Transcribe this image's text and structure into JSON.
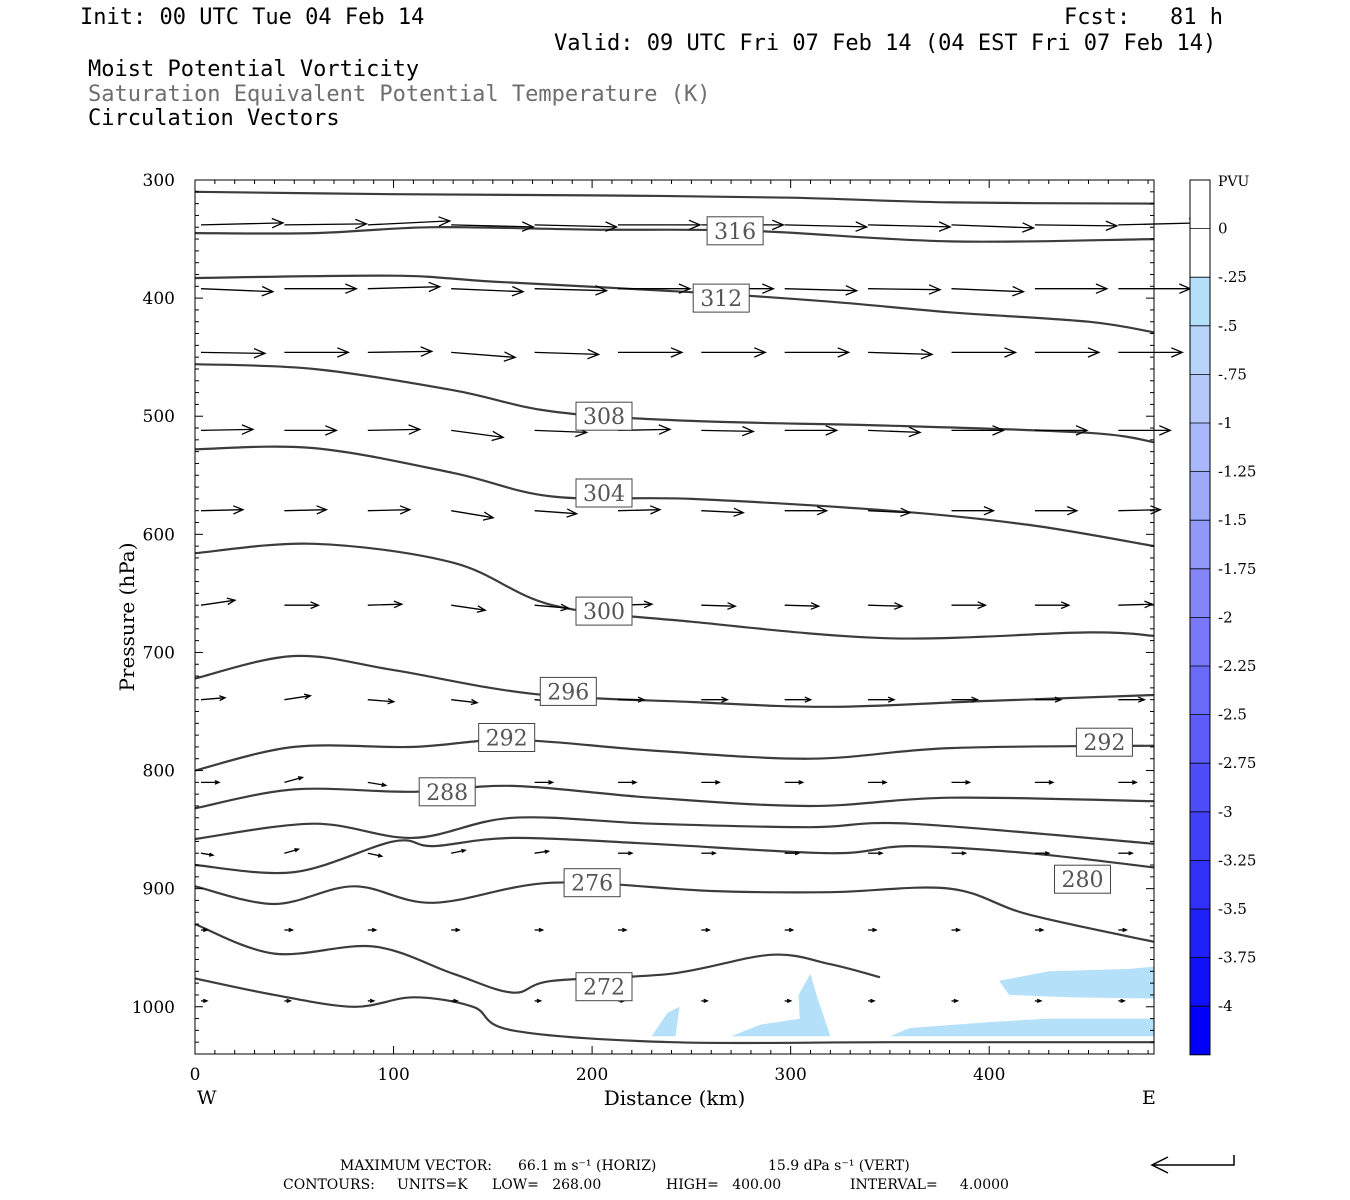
{
  "header": {
    "init": "Init: 00 UTC Tue 04 Feb 14",
    "fcst": "Fcst:   81 h",
    "valid": "Valid: 09 UTC Fri 07 Feb 14 (04 EST Fri 07 Feb 14)",
    "field1": "Moist Potential Vorticity",
    "field2": "Saturation Equivalent Potential Temperature (K)",
    "field3": "Circulation Vectors"
  },
  "footer": {
    "max_vector_label": "MAXIMUM VECTOR:",
    "max_horiz": "66.1 m s⁻¹ (HORIZ)",
    "max_vert": "15.9 dPa s⁻¹ (VERT)",
    "contours_label": "CONTOURS:",
    "units": "UNITS=K",
    "low": "LOW=   268.00",
    "high": "HIGH=   400.00",
    "interval": "INTERVAL=     4.0000"
  },
  "colors": {
    "contour": "#3c3c3c",
    "pv_fill": "#b4e0fa",
    "frame": "#000000"
  },
  "chart_data": {
    "type": "contour",
    "xlabel": "Distance (km)",
    "ylabel": "Pressure (hPa)",
    "x_ticks": [
      0,
      100,
      200,
      300,
      400
    ],
    "y_ticks": [
      300,
      400,
      500,
      600,
      700,
      800,
      900,
      1000
    ],
    "xlim": [
      0,
      483
    ],
    "ylim": [
      1040,
      300
    ],
    "x_side_labels": {
      "left": "W",
      "right": "E"
    },
    "contour_labels": [
      {
        "text": "316",
        "x": 272,
        "p": 343
      },
      {
        "text": "312",
        "x": 265,
        "p": 400
      },
      {
        "text": "308",
        "x": 206,
        "p": 500
      },
      {
        "text": "304",
        "x": 206,
        "p": 565
      },
      {
        "text": "300",
        "x": 206,
        "p": 665
      },
      {
        "text": "296",
        "x": 188,
        "p": 733
      },
      {
        "text": "292",
        "x": 157,
        "p": 772
      },
      {
        "text": "292",
        "x": 458,
        "p": 776
      },
      {
        "text": "288",
        "x": 127,
        "p": 818
      },
      {
        "text": "276",
        "x": 200,
        "p": 895
      },
      {
        "text": "280",
        "x": 447,
        "p": 892
      },
      {
        "text": "272",
        "x": 206,
        "p": 983
      }
    ],
    "isentropes": [
      [
        [
          0,
          310
        ],
        [
          100,
          312
        ],
        [
          200,
          313
        ],
        [
          300,
          315
        ],
        [
          380,
          319
        ],
        [
          483,
          320
        ]
      ],
      [
        [
          0,
          345
        ],
        [
          60,
          345
        ],
        [
          120,
          340
        ],
        [
          200,
          342
        ],
        [
          280,
          343
        ],
        [
          380,
          352
        ],
        [
          483,
          350
        ]
      ],
      [
        [
          0,
          383
        ],
        [
          100,
          381
        ],
        [
          150,
          386
        ],
        [
          250,
          395
        ],
        [
          320,
          403
        ],
        [
          380,
          412
        ],
        [
          450,
          420
        ],
        [
          483,
          429
        ]
      ],
      [
        [
          0,
          456
        ],
        [
          60,
          460
        ],
        [
          130,
          478
        ],
        [
          180,
          496
        ],
        [
          250,
          504
        ],
        [
          350,
          508
        ],
        [
          450,
          514
        ],
        [
          483,
          522
        ]
      ],
      [
        [
          0,
          528
        ],
        [
          60,
          527
        ],
        [
          130,
          548
        ],
        [
          180,
          568
        ],
        [
          250,
          570
        ],
        [
          350,
          580
        ],
        [
          420,
          592
        ],
        [
          483,
          610
        ]
      ],
      [
        [
          0,
          616
        ],
        [
          60,
          608
        ],
        [
          130,
          624
        ],
        [
          180,
          660
        ],
        [
          250,
          674
        ],
        [
          350,
          688
        ],
        [
          450,
          683
        ],
        [
          483,
          686
        ]
      ],
      [
        [
          0,
          722
        ],
        [
          50,
          703
        ],
        [
          100,
          715
        ],
        [
          170,
          735
        ],
        [
          250,
          742
        ],
        [
          320,
          746
        ],
        [
          400,
          741
        ],
        [
          483,
          736
        ]
      ],
      [
        [
          0,
          800
        ],
        [
          50,
          780
        ],
        [
          110,
          780
        ],
        [
          160,
          774
        ],
        [
          230,
          783
        ],
        [
          310,
          790
        ],
        [
          380,
          781
        ],
        [
          483,
          779
        ]
      ],
      [
        [
          0,
          832
        ],
        [
          50,
          816
        ],
        [
          110,
          818
        ],
        [
          160,
          813
        ],
        [
          230,
          823
        ],
        [
          310,
          830
        ],
        [
          380,
          823
        ],
        [
          483,
          826
        ]
      ],
      [
        [
          0,
          858
        ],
        [
          60,
          845
        ],
        [
          110,
          857
        ],
        [
          160,
          840
        ],
        [
          230,
          845
        ],
        [
          310,
          848
        ],
        [
          360,
          845
        ],
        [
          483,
          862
        ]
      ],
      [
        [
          0,
          880
        ],
        [
          50,
          886
        ],
        [
          100,
          860
        ],
        [
          120,
          864
        ],
        [
          160,
          857
        ],
        [
          230,
          862
        ],
        [
          320,
          870
        ],
        [
          360,
          864
        ],
        [
          420,
          870
        ],
        [
          483,
          882
        ]
      ],
      [
        [
          0,
          898
        ],
        [
          40,
          913
        ],
        [
          80,
          898
        ],
        [
          120,
          912
        ],
        [
          180,
          895
        ],
        [
          260,
          902
        ],
        [
          320,
          903
        ],
        [
          380,
          900
        ],
        [
          420,
          922
        ],
        [
          483,
          945
        ]
      ],
      [
        [
          0,
          930
        ],
        [
          40,
          955
        ],
        [
          90,
          949
        ],
        [
          130,
          972
        ],
        [
          160,
          988
        ],
        [
          180,
          978
        ],
        [
          240,
          972
        ],
        [
          290,
          956
        ],
        [
          320,
          964
        ],
        [
          345,
          975
        ]
      ],
      [
        [
          0,
          976
        ],
        [
          40,
          990
        ],
        [
          80,
          1000
        ],
        [
          110,
          992
        ],
        [
          140,
          1000
        ],
        [
          160,
          1020
        ],
        [
          240,
          1030
        ],
        [
          350,
          1030
        ],
        [
          483,
          1030
        ]
      ]
    ],
    "pv_regions": [
      {
        "level": -0.25,
        "points": [
          [
            230,
            1025
          ],
          [
            238,
            1005
          ],
          [
            244,
            1000
          ],
          [
            242,
            1025
          ]
        ]
      },
      {
        "level": -0.25,
        "points": [
          [
            305,
            1025
          ],
          [
            304,
            990
          ],
          [
            310,
            972
          ],
          [
            313,
            990
          ],
          [
            320,
            1025
          ]
        ]
      },
      {
        "level": -0.25,
        "points": [
          [
            270,
            1025
          ],
          [
            285,
            1015
          ],
          [
            305,
            1010
          ],
          [
            305,
            1025
          ]
        ]
      },
      {
        "level": -0.25,
        "points": [
          [
            350,
            1025
          ],
          [
            360,
            1018
          ],
          [
            400,
            1013
          ],
          [
            430,
            1010
          ],
          [
            483,
            1010
          ],
          [
            483,
            1025
          ]
        ]
      },
      {
        "level": -0.25,
        "points": [
          [
            405,
            978
          ],
          [
            430,
            970
          ],
          [
            470,
            968
          ],
          [
            483,
            966
          ],
          [
            483,
            993
          ],
          [
            440,
            992
          ],
          [
            410,
            990
          ]
        ]
      }
    ],
    "pv_colorbar": {
      "label": "PVU",
      "levels": [
        "0",
        "-.25",
        "-.5",
        "-.75",
        "-1",
        "-1.25",
        "-1.5",
        "-1.75",
        "-2",
        "-2.25",
        "-2.5",
        "-2.75",
        "-3",
        "-3.25",
        "-3.5",
        "-3.75",
        "-4"
      ],
      "colors": [
        "#ffffff",
        "#ffffff",
        "#b4e0fa",
        "#b8d4fa",
        "#b4c8fa",
        "#a8b8fa",
        "#9caaf8",
        "#9098f8",
        "#8486f8",
        "#7878f8",
        "#6a6af8",
        "#5c5cf8",
        "#4e4ef8",
        "#4040f8",
        "#3030f8",
        "#2020f8",
        "#1010f8",
        "#0000f8"
      ]
    },
    "vector_rows": [
      {
        "p": 338,
        "u": [
          82,
          82,
          82,
          82,
          82,
          82,
          82,
          82,
          82,
          82,
          82,
          82
        ],
        "w": [
          -2,
          -1,
          -4,
          2,
          2,
          0,
          0,
          2,
          2,
          3,
          1,
          -2
        ]
      },
      {
        "p": 392,
        "u": [
          72,
          72,
          72,
          72,
          72,
          72,
          72,
          72,
          72,
          72,
          72,
          72
        ],
        "w": [
          3,
          0,
          -2,
          3,
          2,
          0,
          0,
          2,
          1,
          3,
          0,
          0
        ]
      },
      {
        "p": 446,
        "u": [
          64,
          64,
          64,
          64,
          64,
          64,
          64,
          64,
          64,
          64,
          64,
          64
        ],
        "w": [
          1,
          0,
          -1,
          5,
          2,
          0,
          0,
          0,
          2,
          0,
          0,
          0
        ]
      },
      {
        "p": 512,
        "u": [
          52,
          52,
          52,
          52,
          52,
          52,
          52,
          52,
          52,
          52,
          52,
          52
        ],
        "w": [
          -1,
          0,
          -1,
          7,
          2,
          -1,
          1,
          0,
          2,
          0,
          0,
          0
        ]
      },
      {
        "p": 580,
        "u": [
          42,
          42,
          42,
          42,
          42,
          42,
          42,
          42,
          42,
          42,
          42,
          42
        ],
        "w": [
          -1,
          -1,
          -1,
          7,
          3,
          -1,
          2,
          0,
          2,
          0,
          0,
          -1
        ]
      },
      {
        "p": 660,
        "u": [
          34,
          34,
          34,
          34,
          34,
          34,
          34,
          34,
          34,
          34,
          34,
          34
        ],
        "w": [
          -5,
          0,
          -1,
          5,
          3,
          -1,
          1,
          1,
          1,
          0,
          0,
          -1
        ]
      },
      {
        "p": 740,
        "u": [
          24,
          26,
          26,
          26,
          26,
          26,
          26,
          26,
          26,
          26,
          26,
          26
        ],
        "w": [
          -2,
          -4,
          2,
          3,
          2,
          0,
          0,
          0,
          0,
          0,
          0,
          0
        ]
      },
      {
        "p": 810,
        "u": [
          18,
          18,
          18,
          18,
          18,
          18,
          18,
          18,
          18,
          18,
          18,
          18
        ],
        "w": [
          0,
          -5,
          3,
          -3,
          0,
          0,
          0,
          0,
          0,
          0,
          0,
          0
        ]
      },
      {
        "p": 870,
        "u": [
          12,
          14,
          14,
          14,
          14,
          14,
          14,
          14,
          14,
          14,
          14,
          14
        ],
        "w": [
          2,
          -4,
          3,
          -3,
          -2,
          0,
          0,
          0,
          0,
          0,
          0,
          0
        ]
      },
      {
        "p": 935,
        "u": [
          6,
          8,
          8,
          8,
          8,
          8,
          8,
          8,
          8,
          8,
          8,
          8
        ],
        "w": [
          0,
          0,
          0,
          0,
          0,
          0,
          0,
          0,
          0,
          0,
          0,
          0
        ]
      },
      {
        "p": 995,
        "u": [
          6,
          6,
          6,
          6,
          6,
          6,
          6,
          6,
          6,
          6,
          6,
          6
        ],
        "w": [
          0,
          0,
          0,
          0,
          0,
          0,
          0,
          0,
          0,
          0,
          0,
          0
        ]
      }
    ]
  }
}
